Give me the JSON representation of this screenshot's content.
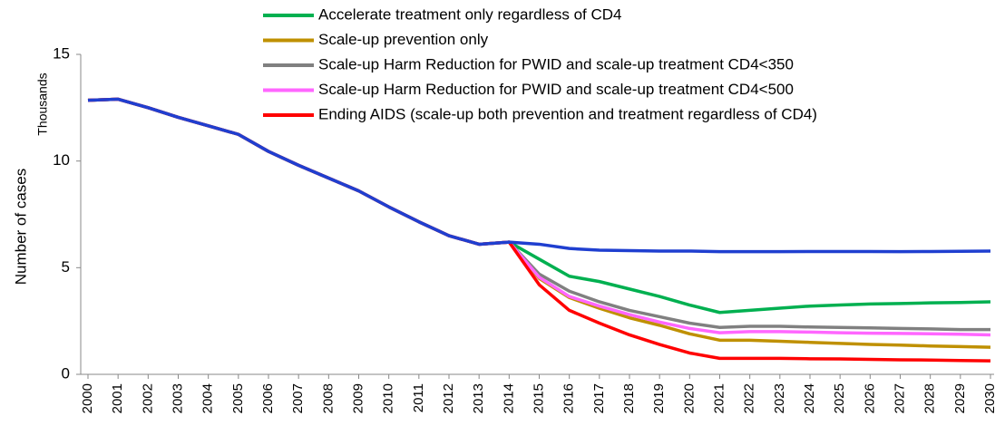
{
  "chart_data": {
    "type": "line",
    "y_label": "Number of cases",
    "y_unit_label": "Thousands",
    "categories": [
      "2000",
      "2001",
      "2002",
      "2003",
      "2004",
      "2005",
      "2006",
      "2007",
      "2008",
      "2009",
      "2010",
      "2011",
      "2012",
      "2013",
      "2014",
      "2015",
      "2016",
      "2017",
      "2018",
      "2019",
      "2020",
      "2021",
      "2022",
      "2023",
      "2024",
      "2025",
      "2026",
      "2027",
      "2028",
      "2029",
      "2030"
    ],
    "ylim": [
      0,
      15
    ],
    "yticks": [
      0,
      5,
      10,
      15
    ],
    "grid": false,
    "legend": "top",
    "series": [
      {
        "name": "Accelerate treatment only regardless of CD4",
        "color": "#00b050",
        "values": [
          12.85,
          12.9,
          12.5,
          12.05,
          11.65,
          11.25,
          10.45,
          9.8,
          9.2,
          8.6,
          7.85,
          7.15,
          6.5,
          6.1,
          6.2,
          5.4,
          4.6,
          4.35,
          4.0,
          3.65,
          3.25,
          2.9,
          3.0,
          3.1,
          3.2,
          3.25,
          3.3,
          3.32,
          3.35,
          3.37,
          3.4
        ]
      },
      {
        "name": "Scale-up prevention only",
        "color": "#bf9000",
        "values": [
          12.85,
          12.9,
          12.5,
          12.05,
          11.65,
          11.25,
          10.45,
          9.8,
          9.2,
          8.6,
          7.85,
          7.15,
          6.5,
          6.1,
          6.2,
          4.5,
          3.6,
          3.1,
          2.65,
          2.3,
          1.9,
          1.6,
          1.6,
          1.55,
          1.5,
          1.45,
          1.4,
          1.37,
          1.33,
          1.3,
          1.27
        ]
      },
      {
        "name": "Scale-up Harm Reduction for PWID and scale-up treatment CD4<350",
        "color": "#808080",
        "values": [
          12.85,
          12.9,
          12.5,
          12.05,
          11.65,
          11.25,
          10.45,
          9.8,
          9.2,
          8.6,
          7.85,
          7.15,
          6.5,
          6.1,
          6.2,
          4.7,
          3.9,
          3.4,
          3.0,
          2.7,
          2.4,
          2.2,
          2.25,
          2.25,
          2.22,
          2.2,
          2.18,
          2.15,
          2.13,
          2.1,
          2.1
        ]
      },
      {
        "name": "Scale-up Harm Reduction for PWID and scale-up treatment CD4<500",
        "color": "#ff66ff",
        "values": [
          12.85,
          12.9,
          12.5,
          12.05,
          11.65,
          11.25,
          10.45,
          9.8,
          9.2,
          8.6,
          7.85,
          7.15,
          6.5,
          6.1,
          6.2,
          4.55,
          3.65,
          3.2,
          2.8,
          2.45,
          2.15,
          1.95,
          2.0,
          2.0,
          1.98,
          1.95,
          1.93,
          1.92,
          1.9,
          1.88,
          1.85
        ]
      },
      {
        "name": "Ending AIDS (scale-up both prevention and treatment regardless of CD4)",
        "color": "#ff0000",
        "values": [
          12.85,
          12.9,
          12.5,
          12.05,
          11.65,
          11.25,
          10.45,
          9.8,
          9.2,
          8.6,
          7.85,
          7.15,
          6.5,
          6.1,
          6.2,
          4.2,
          3.0,
          2.4,
          1.85,
          1.4,
          1.0,
          0.75,
          0.75,
          0.75,
          0.73,
          0.72,
          0.7,
          0.68,
          0.67,
          0.65,
          0.63
        ]
      },
      {
        "color": "#1f3fd0",
        "values": [
          12.85,
          12.9,
          12.5,
          12.05,
          11.65,
          11.25,
          10.45,
          9.8,
          9.2,
          8.6,
          7.85,
          7.15,
          6.5,
          6.1,
          6.2,
          6.1,
          5.9,
          5.82,
          5.8,
          5.78,
          5.78,
          5.75,
          5.75,
          5.75,
          5.76,
          5.76,
          5.76,
          5.75,
          5.76,
          5.77,
          5.78
        ]
      }
    ]
  }
}
